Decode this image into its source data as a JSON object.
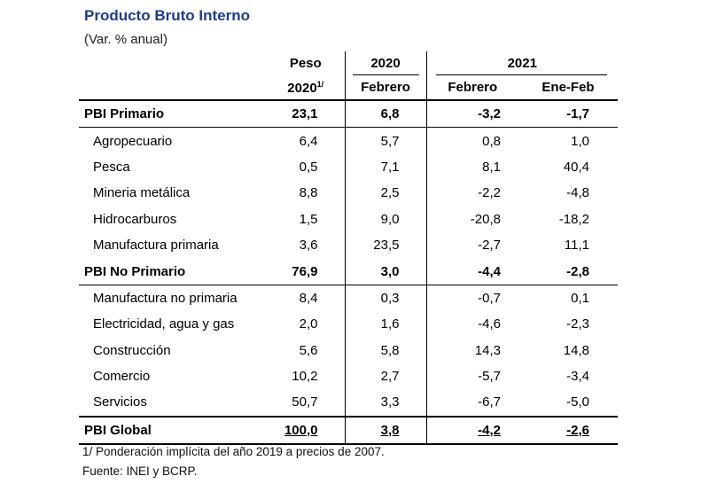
{
  "title": "Producto Bruto Interno",
  "subtitle": "(Var. % anual)",
  "header": {
    "peso": "Peso",
    "peso_year": "2020",
    "peso_note": "1/",
    "year_2020": "2020",
    "year_2021": "2021",
    "feb_2020": "Febrero",
    "feb_2021": "Febrero",
    "ene_feb": "Ene-Feb"
  },
  "rows": [
    {
      "name": "PBI Primario",
      "peso": "23,1",
      "feb2020": "6,8",
      "feb2021": "-3,2",
      "enefeb": "-1,7"
    },
    {
      "name": "Agropecuario",
      "peso": "6,4",
      "feb2020": "5,7",
      "feb2021": "0,8",
      "enefeb": "1,0"
    },
    {
      "name": "Pesca",
      "peso": "0,5",
      "feb2020": "7,1",
      "feb2021": "8,1",
      "enefeb": "40,4"
    },
    {
      "name": "Mineria metálica",
      "peso": "8,8",
      "feb2020": "2,5",
      "feb2021": "-2,2",
      "enefeb": "-4,8"
    },
    {
      "name": "Hidrocarburos",
      "peso": "1,5",
      "feb2020": "9,0",
      "feb2021": "-20,8",
      "enefeb": "-18,2"
    },
    {
      "name": "Manufactura primaria",
      "peso": "3,6",
      "feb2020": "23,5",
      "feb2021": "-2,7",
      "enefeb": "11,1"
    },
    {
      "name": "PBI No Primario",
      "peso": "76,9",
      "feb2020": "3,0",
      "feb2021": "-4,4",
      "enefeb": "-2,8"
    },
    {
      "name": "Manufactura no primaria",
      "peso": "8,4",
      "feb2020": "0,3",
      "feb2021": "-0,7",
      "enefeb": "0,1"
    },
    {
      "name": "Electricidad, agua y gas",
      "peso": "2,0",
      "feb2020": "1,6",
      "feb2021": "-4,6",
      "enefeb": "-2,3"
    },
    {
      "name": "Construcción",
      "peso": "5,6",
      "feb2020": "5,8",
      "feb2021": "14,3",
      "enefeb": "14,8"
    },
    {
      "name": "Comercio",
      "peso": "10,2",
      "feb2020": "2,7",
      "feb2021": "-5,7",
      "enefeb": "-3,4"
    },
    {
      "name": "Servicios",
      "peso": "50,7",
      "feb2020": "3,3",
      "feb2021": "-6,7",
      "enefeb": "-5,0"
    },
    {
      "name": "PBI Global",
      "peso": "100,0",
      "feb2020": "3,8",
      "feb2021": "-4,2",
      "enefeb": "-2,6"
    }
  ],
  "footnotes": {
    "note1": "1/ Ponderación implícita del año 2019 a precios de 2007.",
    "source": "Fuente: INEI y BCRP."
  }
}
